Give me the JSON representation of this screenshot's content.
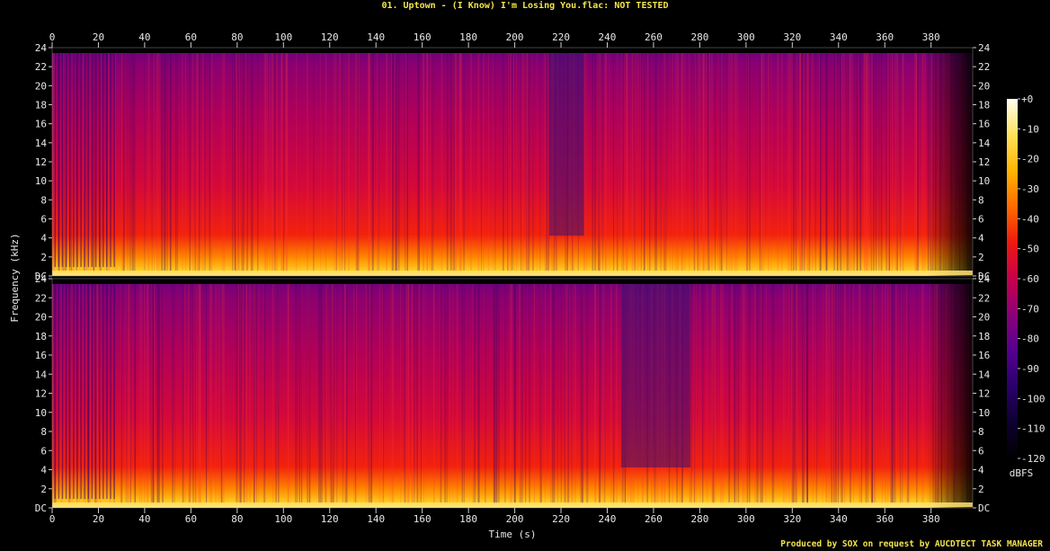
{
  "title": "01. Uptown - (I Know) I'm Losing You.flac: NOT TESTED",
  "footer": "Produced by SOX on request by AUCDTECT TASK MANAGER",
  "chart_data": {
    "type": "heatmap",
    "description_kind": "spectrogram",
    "xlabel": "Time (s)",
    "ylabel": "Frequency (kHz)",
    "xlim": [
      0,
      398
    ],
    "ylim": [
      0,
      24
    ],
    "x_ticks": [
      "0",
      "20",
      "40",
      "60",
      "80",
      "100",
      "120",
      "140",
      "160",
      "180",
      "200",
      "220",
      "240",
      "260",
      "280",
      "300",
      "320",
      "340",
      "360",
      "380"
    ],
    "y_ticks": [
      "DC",
      "2",
      "4",
      "6",
      "8",
      "10",
      "12",
      "14",
      "16",
      "18",
      "20",
      "22",
      "24"
    ],
    "channels": [
      "channel-1",
      "channel-2"
    ],
    "colorbar": {
      "label": "dBFS",
      "ticks": [
        "+0",
        "-10",
        "-20",
        "-30",
        "-40",
        "-50",
        "-60",
        "-70",
        "-80",
        "-90",
        "-100",
        "-110",
        "-120"
      ],
      "colors": [
        "#fffff4",
        "#ffe15a",
        "#ffb500",
        "#ff6a00",
        "#f0180f",
        "#c8004a",
        "#8c0078",
        "#540090",
        "#2a006a",
        "#0e0030",
        "#000000"
      ]
    }
  }
}
